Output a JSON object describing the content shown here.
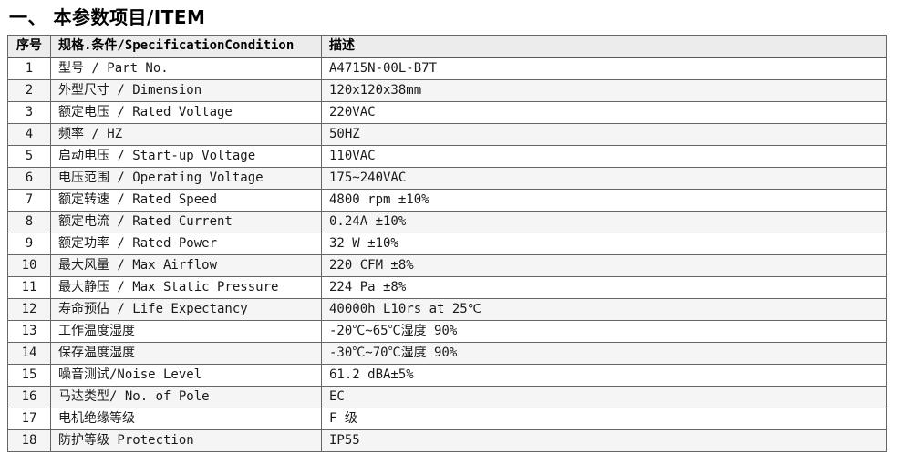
{
  "page": {
    "title": "一、 本参数项目/ITEM"
  },
  "table": {
    "headers": [
      "序号",
      "规格.条件/SpecificationCondition",
      "描述"
    ],
    "rows": [
      {
        "no": "1",
        "spec": "型号 / Part No.",
        "desc": "A4715N-00L-B7T"
      },
      {
        "no": "2",
        "spec": "外型尺寸 / Dimension",
        "desc": "120x120x38mm"
      },
      {
        "no": "3",
        "spec": "额定电压 / Rated Voltage",
        "desc": "220VAC"
      },
      {
        "no": "4",
        "spec": "频率 / HZ",
        "desc": "50HZ"
      },
      {
        "no": "5",
        "spec": "启动电压 / Start-up Voltage",
        "desc": "110VAC"
      },
      {
        "no": "6",
        "spec": "电压范围 / Operating Voltage",
        "desc": "175~240VAC"
      },
      {
        "no": "7",
        "spec": "额定转速 / Rated Speed",
        "desc": "4800 rpm ±10%"
      },
      {
        "no": "8",
        "spec": "额定电流 / Rated Current",
        "desc": "0.24A ±10%"
      },
      {
        "no": "9",
        "spec": "额定功率 / Rated Power",
        "desc": "32 W ±10%"
      },
      {
        "no": "10",
        "spec": "最大风量 / Max Airflow",
        "desc": "220 CFM ±8%"
      },
      {
        "no": "11",
        "spec": "最大静压 / Max Static Pressure",
        "desc": "224 Pa ±8%"
      },
      {
        "no": "12",
        "spec": "寿命预估 / Life Expectancy",
        "desc": "40000h L10rs at 25℃"
      },
      {
        "no": "13",
        "spec": "工作温度湿度",
        "desc": "-20℃~65℃湿度 90%"
      },
      {
        "no": "14",
        "spec": "保存温度湿度",
        "desc": "-30℃~70℃湿度 90%"
      },
      {
        "no": "15",
        "spec": "噪音测试/Noise Level",
        "desc": "61.2  dBA±5%"
      },
      {
        "no": "16",
        "spec": "马达类型/ No. of Pole",
        "desc": "EC"
      },
      {
        "no": "17",
        "spec": "电机绝缘等级",
        "desc": "F 级"
      },
      {
        "no": "18",
        "spec": "防护等级 Protection",
        "desc": "IP55"
      }
    ]
  },
  "colors": {
    "header_bg": "#ececec",
    "even_row_bg": "#f5f5f5",
    "border": "#666666",
    "text": "#1a1a1a"
  }
}
